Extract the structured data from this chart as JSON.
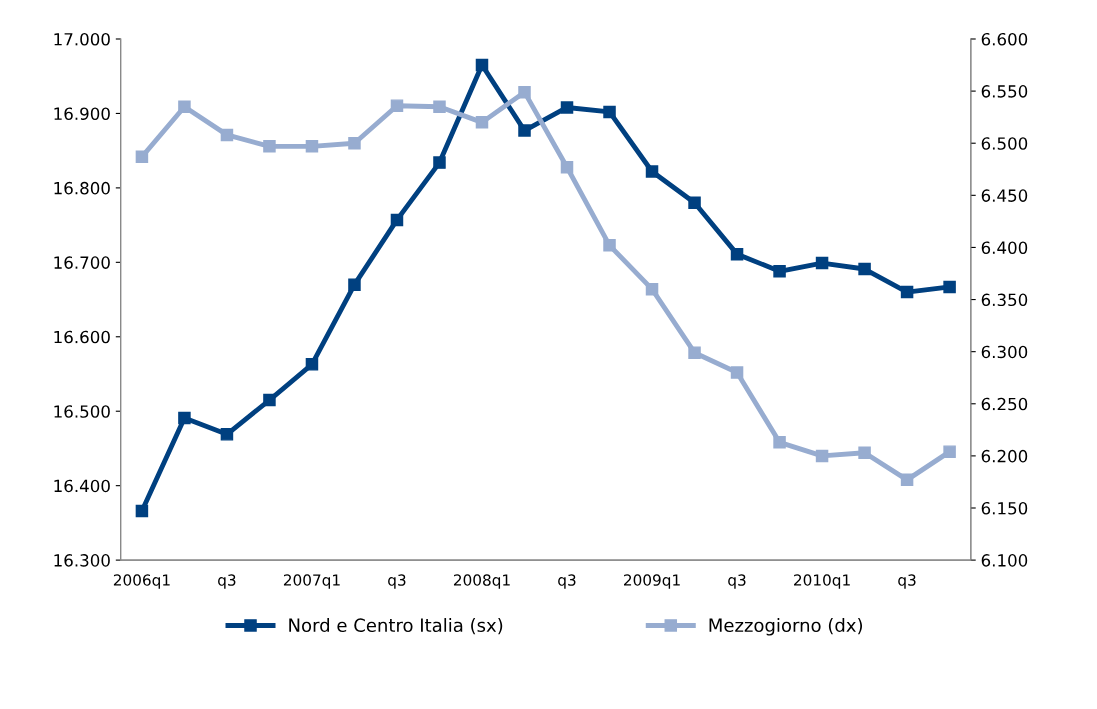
{
  "chart_data": {
    "type": "line",
    "categories": [
      "2006q1",
      null,
      "q3",
      null,
      "2007q1",
      null,
      "q3",
      null,
      "2008q1",
      null,
      "q3",
      null,
      "2009q1",
      null,
      "q3",
      null,
      "2010q1",
      null,
      "q3",
      null
    ],
    "series": [
      {
        "name": "Nord e Centro Italia (sx)",
        "color": "#004080",
        "values": [
          16366,
          16491,
          16469,
          16515,
          16563,
          16670,
          16757,
          16834,
          16965,
          16877,
          16908,
          16902,
          16822,
          16780,
          16711,
          16688,
          16699,
          16691,
          16660,
          16667
        ]
      },
      {
        "name": "Mezzogiorno (dx)",
        "color": "#97acd0",
        "axis": "y2",
        "values": [
          6487,
          6535,
          6508,
          6497,
          6497,
          6500,
          6536,
          6535,
          6520,
          6549,
          6477,
          6402,
          6360,
          6299,
          6280,
          6213,
          6200,
          6203,
          6177,
          6204
        ]
      }
    ],
    "ylim": [
      16300,
      17000
    ],
    "yticks": [
      {
        "value": 16300,
        "label": "16.300"
      },
      {
        "value": 16400,
        "label": "16.400"
      },
      {
        "value": 16500,
        "label": "16.500"
      },
      {
        "value": 16600,
        "label": "16.600"
      },
      {
        "value": 16700,
        "label": "16.700"
      },
      {
        "value": 16800,
        "label": "16.800"
      },
      {
        "value": 16900,
        "label": "16.900"
      },
      {
        "value": 17000,
        "label": "17.000"
      }
    ],
    "y2lim": [
      6100,
      6600
    ],
    "y2ticks": [
      {
        "value": 6100,
        "label": "6.100"
      },
      {
        "value": 6150,
        "label": "6.150"
      },
      {
        "value": 6200,
        "label": "6.200"
      },
      {
        "value": 6250,
        "label": "6.250"
      },
      {
        "value": 6300,
        "label": "6.300"
      },
      {
        "value": 6350,
        "label": "6.350"
      },
      {
        "value": 6400,
        "label": "6.400"
      },
      {
        "value": 6450,
        "label": "6.450"
      },
      {
        "value": 6500,
        "label": "6.500"
      },
      {
        "value": 6550,
        "label": "6.550"
      },
      {
        "value": 6600,
        "label": "6.600"
      }
    ],
    "legend": "bottom",
    "marker": "square",
    "grid": false
  }
}
